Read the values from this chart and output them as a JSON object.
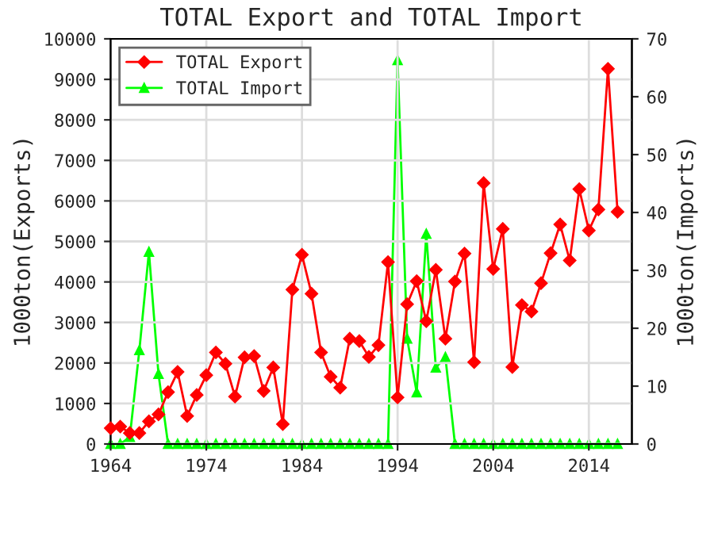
{
  "chart_data": {
    "type": "line",
    "title": "TOTAL Export and TOTAL Import",
    "ylabel": "1000ton(Exports)",
    "y2label": "1000ton(Imports)",
    "x": [
      1964,
      1965,
      1966,
      1967,
      1968,
      1969,
      1970,
      1971,
      1972,
      1973,
      1974,
      1975,
      1976,
      1977,
      1978,
      1979,
      1980,
      1981,
      1982,
      1983,
      1984,
      1985,
      1986,
      1987,
      1988,
      1989,
      1990,
      1991,
      1992,
      1993,
      1994,
      1995,
      1996,
      1997,
      1998,
      1999,
      2000,
      2001,
      2002,
      2003,
      2004,
      2005,
      2006,
      2007,
      2008,
      2009,
      2010,
      2011,
      2012,
      2013,
      2014,
      2015,
      2016,
      2017
    ],
    "series": [
      {
        "name": "TOTAL Export",
        "color": "#ff0000",
        "marker": "diamond",
        "values": [
          390,
          430,
          270,
          270,
          560,
          730,
          1280,
          1780,
          690,
          1210,
          1700,
          2260,
          1980,
          1170,
          2140,
          2170,
          1310,
          1890,
          490,
          3810,
          4670,
          3710,
          2260,
          1660,
          1390,
          2600,
          2540,
          2150,
          2440,
          4490,
          1150,
          3450,
          4020,
          3030,
          4300,
          2600,
          4010,
          4700,
          2020,
          6440,
          4320,
          5310,
          1900,
          3430,
          3270,
          3970,
          4710,
          5420,
          4530,
          6290,
          5270,
          5790,
          9260,
          5730
        ]
      },
      {
        "name": "TOTAL Import",
        "color": "#00ff00",
        "marker": "triangle",
        "axis": "y2",
        "values": [
          0,
          0,
          1.2,
          16.2,
          33.2,
          12.1,
          0,
          0,
          0,
          0,
          0,
          0,
          0,
          0,
          0,
          0,
          0,
          0,
          0,
          0,
          0,
          0,
          0,
          0,
          0,
          0,
          0,
          0,
          0,
          0,
          66.3,
          18.2,
          8.9,
          36.3,
          13.2,
          15.0,
          0,
          0,
          0,
          0,
          0,
          0,
          0,
          0,
          0,
          0,
          0,
          0,
          0,
          0,
          0,
          0,
          0,
          0
        ]
      }
    ],
    "xlim": [
      1964,
      2018.5
    ],
    "xticks": [
      1964,
      1974,
      1984,
      1994,
      2004,
      2014
    ],
    "ylim": [
      0,
      10000
    ],
    "yticks": [
      0,
      1000,
      2000,
      3000,
      4000,
      5000,
      6000,
      7000,
      8000,
      9000,
      10000
    ],
    "y2lim": [
      0,
      70
    ],
    "y2ticks": [
      0,
      10,
      20,
      30,
      40,
      50,
      60,
      70
    ],
    "grid": true,
    "legend": "top left"
  }
}
